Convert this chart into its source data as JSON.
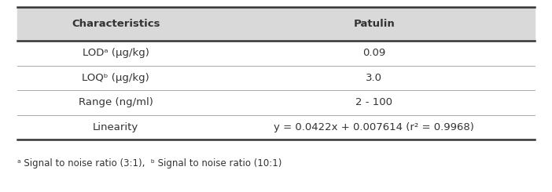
{
  "header": [
    "Characteristics",
    "Patulin"
  ],
  "rows": [
    [
      "LODᵃ (μg/kg)",
      "0.09"
    ],
    [
      "LOQᵇ (μg/kg)",
      "3.0"
    ],
    [
      "Range (ng/ml)",
      "2 - 100"
    ],
    [
      "Linearity",
      "y = 0.0422x + 0.007614 (r² = 0.9968)"
    ]
  ],
  "footnote": "ᵃ Signal to noise ratio (3:1),  ᵇ Signal to noise ratio (10:1)",
  "header_bg": "#d9d9d9",
  "body_bg": "#ffffff",
  "thick_line_color": "#333333",
  "thin_line_color": "#aaaaaa",
  "text_color": "#333333",
  "font_size": 9.5,
  "footnote_font_size": 8.5
}
